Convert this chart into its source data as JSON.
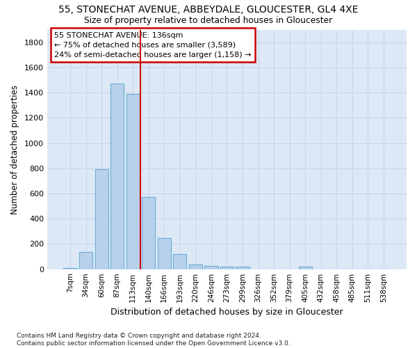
{
  "title1": "55, STONECHAT AVENUE, ABBEYDALE, GLOUCESTER, GL4 4XE",
  "title2": "Size of property relative to detached houses in Gloucester",
  "xlabel": "Distribution of detached houses by size in Gloucester",
  "ylabel": "Number of detached properties",
  "bar_labels": [
    "7sqm",
    "34sqm",
    "60sqm",
    "87sqm",
    "113sqm",
    "140sqm",
    "166sqm",
    "193sqm",
    "220sqm",
    "246sqm",
    "273sqm",
    "299sqm",
    "326sqm",
    "352sqm",
    "379sqm",
    "405sqm",
    "432sqm",
    "458sqm",
    "485sqm",
    "511sqm",
    "538sqm"
  ],
  "bar_values": [
    10,
    135,
    795,
    1470,
    1390,
    575,
    248,
    120,
    38,
    28,
    20,
    20,
    0,
    0,
    0,
    18,
    0,
    0,
    0,
    0,
    0
  ],
  "bar_color": "#b8d0ea",
  "bar_edgecolor": "#6baed6",
  "vline_x": 4.5,
  "vline_color": "#cc0000",
  "annotation_text": "55 STONECHAT AVENUE: 136sqm\n← 75% of detached houses are smaller (3,589)\n24% of semi-detached houses are larger (1,158) →",
  "annotation_box_facecolor": "#ffffff",
  "annotation_box_edgecolor": "#cc0000",
  "ylim": [
    0,
    1900
  ],
  "yticks": [
    0,
    200,
    400,
    600,
    800,
    1000,
    1200,
    1400,
    1600,
    1800
  ],
  "grid_color": "#c8d4e8",
  "bg_color": "#dce8f5",
  "footnote": "Contains HM Land Registry data © Crown copyright and database right 2024.\nContains public sector information licensed under the Open Government Licence v3.0."
}
